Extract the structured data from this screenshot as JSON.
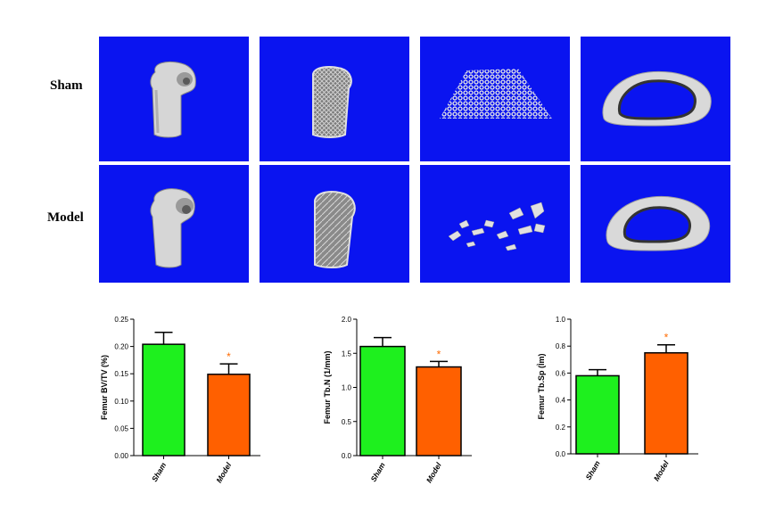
{
  "rows": [
    "Sham",
    "Model"
  ],
  "colors": {
    "panel_bg": "#0a14f0",
    "bone": "#d9d9d9",
    "sham_bar": "#1ef01e",
    "model_bar": "#ff6000",
    "significance": "#ff6a00"
  },
  "chart_data": [
    {
      "type": "bar",
      "categories": [
        "Sham",
        "Model"
      ],
      "values": [
        0.204,
        0.149
      ],
      "errors": [
        0.022,
        0.019
      ],
      "ylabel": "Femur BV/TV (%)",
      "ylim": [
        0,
        0.25
      ],
      "yticks": [
        "0.00",
        "0.05",
        "0.10",
        "0.15",
        "0.20",
        "0.25"
      ],
      "annotations": [
        "",
        "*"
      ],
      "grid": false
    },
    {
      "type": "bar",
      "categories": [
        "Sham",
        "Model"
      ],
      "values": [
        1.6,
        1.3
      ],
      "errors": [
        0.13,
        0.08
      ],
      "ylabel": "Femur Tb.N (1/mm)",
      "ylim": [
        0,
        2.0
      ],
      "yticks": [
        "0.0",
        "0.5",
        "1.0",
        "1.5",
        "2.0"
      ],
      "annotations": [
        "",
        "*"
      ],
      "grid": false
    },
    {
      "type": "bar",
      "categories": [
        "Sham",
        "Model"
      ],
      "values": [
        0.58,
        0.75
      ],
      "errors": [
        0.045,
        0.06
      ],
      "ylabel": "Femur Tb.Sp (Ìm)",
      "ylim": [
        0,
        1.0
      ],
      "yticks": [
        "0.0",
        "0.2",
        "0.4",
        "0.6",
        "0.8",
        "1.0"
      ],
      "annotations": [
        "",
        "*"
      ],
      "grid": false
    }
  ]
}
